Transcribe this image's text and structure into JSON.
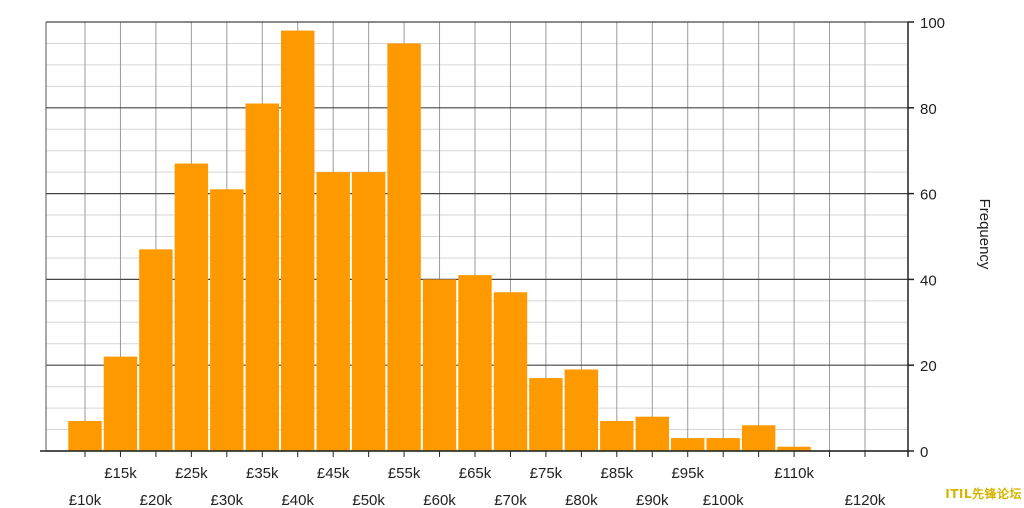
{
  "chart_data": {
    "type": "bar",
    "title": "",
    "xlabel": "",
    "ylabel": "Frequency",
    "y_axis_position": "right",
    "ylim": [
      0,
      100
    ],
    "y_ticks": [
      0,
      20,
      40,
      60,
      80,
      100
    ],
    "grid": true,
    "bar_color": "#ff9900",
    "bin_width": 5000,
    "bins": [
      {
        "start": 7500,
        "value": 7
      },
      {
        "start": 12500,
        "value": 22
      },
      {
        "start": 17500,
        "value": 47
      },
      {
        "start": 22500,
        "value": 67
      },
      {
        "start": 27500,
        "value": 61
      },
      {
        "start": 32500,
        "value": 81
      },
      {
        "start": 37500,
        "value": 98
      },
      {
        "start": 42500,
        "value": 65
      },
      {
        "start": 47500,
        "value": 65
      },
      {
        "start": 52500,
        "value": 95
      },
      {
        "start": 57500,
        "value": 40
      },
      {
        "start": 62500,
        "value": 41
      },
      {
        "start": 67500,
        "value": 37
      },
      {
        "start": 72500,
        "value": 17
      },
      {
        "start": 77500,
        "value": 19
      },
      {
        "start": 82500,
        "value": 7
      },
      {
        "start": 87500,
        "value": 8
      },
      {
        "start": 92500,
        "value": 3
      },
      {
        "start": 97500,
        "value": 3
      },
      {
        "start": 102500,
        "value": 6
      },
      {
        "start": 107500,
        "value": 1
      }
    ],
    "x_ticks_upper": [
      {
        "value": 15000,
        "label": "£15k"
      },
      {
        "value": 25000,
        "label": "£25k"
      },
      {
        "value": 35000,
        "label": "£35k"
      },
      {
        "value": 45000,
        "label": "£45k"
      },
      {
        "value": 55000,
        "label": "£55k"
      },
      {
        "value": 65000,
        "label": "£65k"
      },
      {
        "value": 75000,
        "label": "£75k"
      },
      {
        "value": 85000,
        "label": "£85k"
      },
      {
        "value": 95000,
        "label": "£95k"
      },
      {
        "value": 110000,
        "label": "£110k"
      }
    ],
    "x_ticks_lower": [
      {
        "value": 10000,
        "label": "£10k"
      },
      {
        "value": 20000,
        "label": "£20k"
      },
      {
        "value": 30000,
        "label": "£30k"
      },
      {
        "value": 40000,
        "label": "£40k"
      },
      {
        "value": 50000,
        "label": "£50k"
      },
      {
        "value": 60000,
        "label": "£60k"
      },
      {
        "value": 70000,
        "label": "£70k"
      },
      {
        "value": 80000,
        "label": "£80k"
      },
      {
        "value": 90000,
        "label": "£90k"
      },
      {
        "value": 100000,
        "label": "£100k"
      },
      {
        "value": 120000,
        "label": "£120k"
      }
    ]
  },
  "watermark": "ITIL先锋论坛"
}
